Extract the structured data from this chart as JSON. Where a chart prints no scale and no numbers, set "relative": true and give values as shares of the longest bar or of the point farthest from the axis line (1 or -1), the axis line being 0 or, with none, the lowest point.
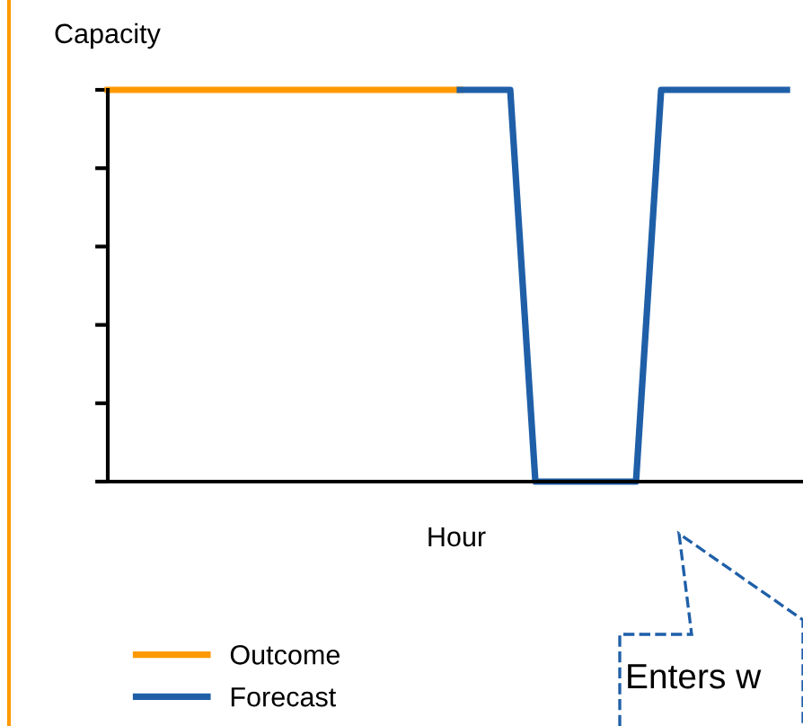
{
  "chart_data": {
    "type": "line",
    "relative": true,
    "xlabel": "Hour",
    "ylabel": "Capacity",
    "legend": "bottom left",
    "grid": false,
    "categories": [
      null,
      null,
      null,
      null,
      null,
      null,
      null,
      null,
      null,
      null,
      null,
      null,
      null,
      null,
      null,
      null,
      null,
      null,
      null,
      null,
      null,
      null,
      null,
      null,
      null,
      null,
      null,
      null
    ],
    "series": [
      {
        "name": "Outcome",
        "color": "#ff9900",
        "values": [
          1,
          1,
          1,
          1,
          1,
          1,
          1,
          1,
          1,
          1,
          1,
          1,
          1,
          1,
          1,
          null,
          null,
          null,
          null,
          null,
          null,
          null,
          null,
          null,
          null,
          null,
          null,
          null
        ]
      },
      {
        "name": "Forecast",
        "color": "#1f5fa8",
        "values": [
          null,
          null,
          null,
          null,
          null,
          null,
          null,
          null,
          null,
          null,
          null,
          null,
          null,
          null,
          1,
          1,
          1,
          0,
          0,
          0,
          0,
          0,
          1,
          1,
          1,
          1,
          1,
          1
        ]
      }
    ],
    "annotations": [
      "Enters w"
    ]
  }
}
